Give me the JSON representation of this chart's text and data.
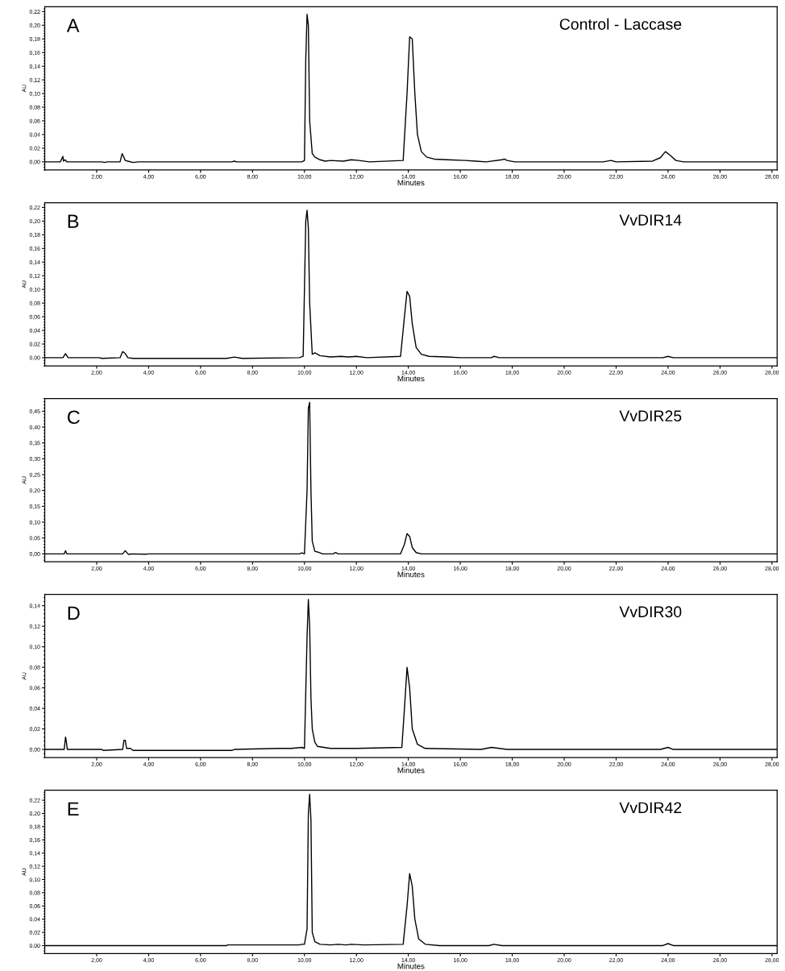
{
  "chart_data": [
    {
      "type": "line",
      "annotations": [
        "A",
        "Control - Laccase"
      ],
      "xlabel": "Minutes",
      "ylabel": "AU",
      "xlim": [
        0,
        28.2
      ],
      "ylim": [
        -0.012,
        0.227
      ],
      "xticks": [
        {
          "value": 2,
          "label": "2,00"
        },
        {
          "value": 4,
          "label": "4,00"
        },
        {
          "value": 6,
          "label": "6,00"
        },
        {
          "value": 8,
          "label": "8,00"
        },
        {
          "value": 10,
          "label": "10,00"
        },
        {
          "value": 12,
          "label": "12,00"
        },
        {
          "value": 14,
          "label": "14,00"
        },
        {
          "value": 16,
          "label": "16,00"
        },
        {
          "value": 18,
          "label": "18,00"
        },
        {
          "value": 20,
          "label": "20,00"
        },
        {
          "value": 22,
          "label": "22,00"
        },
        {
          "value": 24,
          "label": "24,00"
        },
        {
          "value": 26,
          "label": "26,00"
        },
        {
          "value": 28,
          "label": "28,00"
        }
      ],
      "yticks": [
        {
          "value": 0,
          "label": "0,00"
        },
        {
          "value": 0.02,
          "label": "0,02"
        },
        {
          "value": 0.04,
          "label": "0,04"
        },
        {
          "value": 0.06,
          "label": "0,06"
        },
        {
          "value": 0.08,
          "label": "0,08"
        },
        {
          "value": 0.1,
          "label": "0,10"
        },
        {
          "value": 0.12,
          "label": "0,12"
        },
        {
          "value": 0.14,
          "label": "0,14"
        },
        {
          "value": 0.16,
          "label": "0,16"
        },
        {
          "value": 0.18,
          "label": "0,18"
        },
        {
          "value": 0.2,
          "label": "0,20"
        },
        {
          "value": 0.22,
          "label": "0,22"
        }
      ],
      "series": [
        {
          "color": "#000000",
          "x": [
            0,
            0.6,
            0.7,
            0.72,
            0.78,
            0.85,
            2.2,
            2.3,
            2.4,
            2.9,
            2.98,
            3.02,
            3.1,
            3.2,
            3.4,
            3.6,
            7.2,
            7.3,
            7.4,
            9.9,
            10.0,
            10.05,
            10.1,
            10.15,
            10.2,
            10.3,
            10.4,
            10.6,
            10.8,
            11.0,
            11.5,
            11.8,
            12.1,
            12.5,
            13.8,
            13.95,
            14.05,
            14.15,
            14.25,
            14.35,
            14.5,
            14.7,
            15.0,
            15.5,
            16.2,
            16.6,
            17.0,
            17.6,
            17.7,
            17.8,
            18.1,
            21.5,
            21.8,
            22.0,
            23.4,
            23.7,
            23.9,
            24.1,
            24.3,
            24.6,
            28.2
          ],
          "values": [
            0,
            0,
            0.008,
            0.001,
            0.003,
            0,
            0,
            -0.001,
            0,
            0,
            0.012,
            0.009,
            0.002,
            0.001,
            -0.001,
            0,
            0,
            0.001,
            0,
            0,
            0.002,
            0.15,
            0.216,
            0.2,
            0.06,
            0.012,
            0.007,
            0.003,
            0.001,
            0.002,
            0.001,
            0.003,
            0.002,
            0,
            0.002,
            0.1,
            0.183,
            0.18,
            0.1,
            0.04,
            0.015,
            0.007,
            0.004,
            0.003,
            0.002,
            0.001,
            0,
            0.003,
            0.004,
            0.002,
            0,
            0,
            0.002,
            0,
            0.001,
            0.006,
            0.015,
            0.009,
            0.002,
            0,
            0
          ]
        }
      ]
    },
    {
      "type": "line",
      "annotations": [
        "B",
        "VvDIR14"
      ],
      "xlabel": "Minutes",
      "ylabel": "AU",
      "xlim": [
        0,
        28.2
      ],
      "ylim": [
        -0.012,
        0.227
      ],
      "xticks": [
        {
          "value": 2,
          "label": "2,00"
        },
        {
          "value": 4,
          "label": "4,00"
        },
        {
          "value": 6,
          "label": "6,00"
        },
        {
          "value": 8,
          "label": "8,00"
        },
        {
          "value": 10,
          "label": "10,00"
        },
        {
          "value": 12,
          "label": "12,00"
        },
        {
          "value": 14,
          "label": "14,00"
        },
        {
          "value": 16,
          "label": "16,00"
        },
        {
          "value": 18,
          "label": "18,00"
        },
        {
          "value": 20,
          "label": "20,00"
        },
        {
          "value": 22,
          "label": "22,00"
        },
        {
          "value": 24,
          "label": "24,00"
        },
        {
          "value": 26,
          "label": "26,00"
        },
        {
          "value": 28,
          "label": "28,00"
        }
      ],
      "yticks": [
        {
          "value": 0,
          "label": "0,00"
        },
        {
          "value": 0.02,
          "label": "0,02"
        },
        {
          "value": 0.04,
          "label": "0,04"
        },
        {
          "value": 0.06,
          "label": "0,06"
        },
        {
          "value": 0.08,
          "label": "0,08"
        },
        {
          "value": 0.1,
          "label": "0,10"
        },
        {
          "value": 0.12,
          "label": "0,12"
        },
        {
          "value": 0.14,
          "label": "0,14"
        },
        {
          "value": 0.16,
          "label": "0,16"
        },
        {
          "value": 0.18,
          "label": "0,18"
        },
        {
          "value": 0.2,
          "label": "0,20"
        },
        {
          "value": 0.22,
          "label": "0,22"
        }
      ],
      "series": [
        {
          "color": "#000000",
          "x": [
            0,
            0.7,
            0.8,
            0.9,
            2.1,
            2.2,
            2.9,
            3.0,
            3.1,
            3.2,
            3.4,
            7.0,
            7.3,
            7.6,
            9.8,
            9.95,
            10.05,
            10.1,
            10.15,
            10.2,
            10.3,
            10.4,
            10.6,
            11.0,
            11.4,
            11.7,
            12.0,
            12.4,
            13.7,
            13.85,
            13.95,
            14.05,
            14.15,
            14.3,
            14.5,
            14.8,
            15.5,
            16.0,
            17.2,
            17.3,
            17.5,
            23.8,
            24.0,
            24.2,
            28.2
          ],
          "values": [
            0,
            0,
            0.006,
            0,
            0,
            -0.001,
            0,
            0.009,
            0.006,
            0,
            -0.001,
            -0.001,
            0.001,
            -0.001,
            0,
            0.002,
            0.2,
            0.216,
            0.19,
            0.08,
            0.005,
            0.007,
            0.003,
            0.001,
            0.002,
            0.001,
            0.002,
            0,
            0.002,
            0.06,
            0.097,
            0.09,
            0.05,
            0.015,
            0.005,
            0.002,
            0.001,
            0,
            0,
            0.002,
            0,
            0,
            0.002,
            0,
            0
          ]
        }
      ]
    },
    {
      "type": "line",
      "annotations": [
        "C",
        "VvDIR25"
      ],
      "xlabel": "Minutes",
      "ylabel": "AU",
      "xlim": [
        0,
        28.2
      ],
      "ylim": [
        -0.025,
        0.49
      ],
      "xticks": [
        {
          "value": 2,
          "label": "2,00"
        },
        {
          "value": 4,
          "label": "4,00"
        },
        {
          "value": 6,
          "label": "6,00"
        },
        {
          "value": 8,
          "label": "8,00"
        },
        {
          "value": 10,
          "label": "10,00"
        },
        {
          "value": 12,
          "label": "12,00"
        },
        {
          "value": 14,
          "label": "14,00"
        },
        {
          "value": 16,
          "label": "16,00"
        },
        {
          "value": 18,
          "label": "18,00"
        },
        {
          "value": 20,
          "label": "20,00"
        },
        {
          "value": 22,
          "label": "22,00"
        },
        {
          "value": 24,
          "label": "24,00"
        },
        {
          "value": 26,
          "label": "26,00"
        },
        {
          "value": 28,
          "label": "28,00"
        }
      ],
      "yticks": [
        {
          "value": 0,
          "label": "0,00"
        },
        {
          "value": 0.05,
          "label": "0,05"
        },
        {
          "value": 0.1,
          "label": "0,10"
        },
        {
          "value": 0.15,
          "label": "0,15"
        },
        {
          "value": 0.2,
          "label": "0,20"
        },
        {
          "value": 0.25,
          "label": "0,25"
        },
        {
          "value": 0.3,
          "label": "0,30"
        },
        {
          "value": 0.35,
          "label": "0,35"
        },
        {
          "value": 0.4,
          "label": "0,40"
        },
        {
          "value": 0.45,
          "label": "0,45"
        }
      ],
      "series": [
        {
          "color": "#000000",
          "x": [
            0,
            0.75,
            0.8,
            0.85,
            3.0,
            3.1,
            3.2,
            3.25,
            3.3,
            3.9,
            4.0,
            9.8,
            9.9,
            10.0,
            10.1,
            10.15,
            10.2,
            10.25,
            10.3,
            10.4,
            10.5,
            10.7,
            11.1,
            11.2,
            11.3,
            13.7,
            13.85,
            13.95,
            14.05,
            14.15,
            14.3,
            14.5,
            28.2
          ],
          "values": [
            0,
            0,
            0.01,
            0,
            0,
            0.01,
            0,
            -0.002,
            0,
            -0.001,
            0,
            0,
            0.003,
            0,
            0.2,
            0.46,
            0.478,
            0.2,
            0.04,
            0.008,
            0.006,
            0,
            0,
            0.004,
            0,
            0,
            0.03,
            0.064,
            0.055,
            0.02,
            0.004,
            0,
            0
          ]
        }
      ]
    },
    {
      "type": "line",
      "annotations": [
        "D",
        "VvDIR30"
      ],
      "xlabel": "Minutes",
      "ylabel": "AU",
      "xlim": [
        0,
        28.2
      ],
      "ylim": [
        -0.008,
        0.151
      ],
      "xticks": [
        {
          "value": 2,
          "label": "2,00"
        },
        {
          "value": 4,
          "label": "4,00"
        },
        {
          "value": 6,
          "label": "6,00"
        },
        {
          "value": 8,
          "label": "8,00"
        },
        {
          "value": 10,
          "label": "10,00"
        },
        {
          "value": 12,
          "label": "12,00"
        },
        {
          "value": 14,
          "label": "14,00"
        },
        {
          "value": 16,
          "label": "16,00"
        },
        {
          "value": 18,
          "label": "18,00"
        },
        {
          "value": 20,
          "label": "20,00"
        },
        {
          "value": 22,
          "label": "22,00"
        },
        {
          "value": 24,
          "label": "24,00"
        },
        {
          "value": 26,
          "label": "26,00"
        },
        {
          "value": 28,
          "label": "28,00"
        }
      ],
      "yticks": [
        {
          "value": 0,
          "label": "0,00"
        },
        {
          "value": 0.02,
          "label": "0,02"
        },
        {
          "value": 0.04,
          "label": "0,04"
        },
        {
          "value": 0.06,
          "label": "0,06"
        },
        {
          "value": 0.08,
          "label": "0,08"
        },
        {
          "value": 0.1,
          "label": "0,10"
        },
        {
          "value": 0.12,
          "label": "0,12"
        },
        {
          "value": 0.14,
          "label": "0,14"
        }
      ],
      "series": [
        {
          "color": "#000000",
          "x": [
            0,
            0.75,
            0.8,
            0.83,
            0.87,
            2.2,
            2.25,
            3.0,
            3.05,
            3.1,
            3.15,
            3.3,
            3.4,
            7.2,
            7.3,
            9.0,
            9.5,
            9.9,
            10.0,
            10.1,
            10.15,
            10.2,
            10.25,
            10.3,
            10.4,
            10.5,
            11.0,
            12.0,
            13.75,
            13.85,
            13.95,
            14.05,
            14.15,
            14.35,
            14.65,
            16.8,
            17.2,
            17.5,
            17.8,
            23.7,
            24.0,
            24.2,
            28.2
          ],
          "values": [
            0,
            0,
            0.012,
            0.008,
            0,
            0,
            -0.001,
            0,
            0.009,
            0.009,
            0.001,
            0.001,
            -0.001,
            -0.001,
            0,
            0.001,
            0.001,
            0.002,
            0.001,
            0.11,
            0.146,
            0.12,
            0.05,
            0.02,
            0.007,
            0.003,
            0.001,
            0.001,
            0.002,
            0.04,
            0.08,
            0.06,
            0.02,
            0.005,
            0.001,
            0,
            0.002,
            0.001,
            0,
            0,
            0.002,
            0,
            0
          ]
        }
      ]
    },
    {
      "type": "line",
      "annotations": [
        "E",
        "VvDIR42"
      ],
      "xlabel": "Minutes",
      "ylabel": "AU",
      "xlim": [
        0,
        28.2
      ],
      "ylim": [
        -0.012,
        0.235
      ],
      "xticks": [
        {
          "value": 2,
          "label": "2,00"
        },
        {
          "value": 4,
          "label": "4,00"
        },
        {
          "value": 6,
          "label": "6,00"
        },
        {
          "value": 8,
          "label": "8,00"
        },
        {
          "value": 10,
          "label": "10,00"
        },
        {
          "value": 12,
          "label": "12,00"
        },
        {
          "value": 14,
          "label": "14,00"
        },
        {
          "value": 16,
          "label": "16,00"
        },
        {
          "value": 18,
          "label": "18,00"
        },
        {
          "value": 20,
          "label": "20,00"
        },
        {
          "value": 22,
          "label": "22,00"
        },
        {
          "value": 24,
          "label": "24,00"
        },
        {
          "value": 26,
          "label": "26,00"
        },
        {
          "value": 28,
          "label": "28,00"
        }
      ],
      "yticks": [
        {
          "value": 0,
          "label": "0,00"
        },
        {
          "value": 0.02,
          "label": "0,02"
        },
        {
          "value": 0.04,
          "label": "0,04"
        },
        {
          "value": 0.06,
          "label": "0,06"
        },
        {
          "value": 0.08,
          "label": "0,08"
        },
        {
          "value": 0.1,
          "label": "0,10"
        },
        {
          "value": 0.12,
          "label": "0,12"
        },
        {
          "value": 0.14,
          "label": "0,14"
        },
        {
          "value": 0.16,
          "label": "0,16"
        },
        {
          "value": 0.18,
          "label": "0,18"
        },
        {
          "value": 0.2,
          "label": "0,20"
        },
        {
          "value": 0.22,
          "label": "0,22"
        }
      ],
      "series": [
        {
          "color": "#000000",
          "x": [
            0,
            7.0,
            7.05,
            9.8,
            9.9,
            10.0,
            10.1,
            10.15,
            10.2,
            10.25,
            10.3,
            10.4,
            10.6,
            11.0,
            11.3,
            11.6,
            11.8,
            12.3,
            13.8,
            13.95,
            14.05,
            14.15,
            14.25,
            14.4,
            14.65,
            15.2,
            17.1,
            17.3,
            17.6,
            23.8,
            24.0,
            24.2,
            28.2
          ],
          "values": [
            0,
            0,
            0.001,
            0.001,
            0.002,
            0.002,
            0.025,
            0.2,
            0.229,
            0.19,
            0.02,
            0.006,
            0.002,
            0.001,
            0.002,
            0.001,
            0.002,
            0.001,
            0.002,
            0.06,
            0.109,
            0.09,
            0.04,
            0.01,
            0.002,
            0,
            0,
            0.002,
            0,
            0,
            0.003,
            0,
            0
          ]
        }
      ]
    }
  ]
}
